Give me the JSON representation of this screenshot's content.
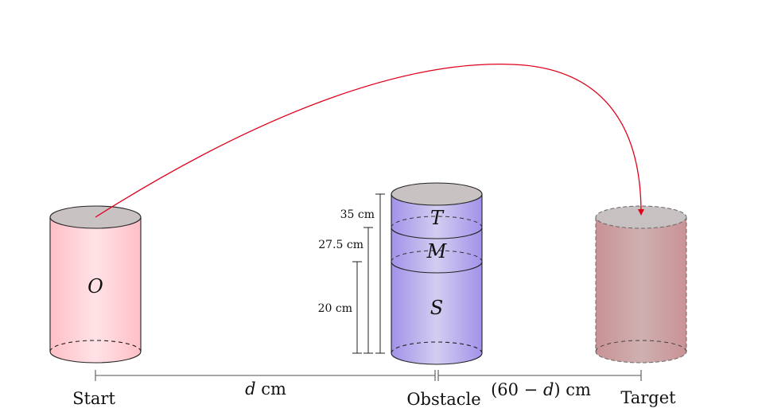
{
  "start_cylinder": {
    "letter": "O",
    "color": "#ffc8cf"
  },
  "obstacle": {
    "letters": {
      "top": "T",
      "middle": "M",
      "bottom": "S"
    },
    "color": "#a99ae8",
    "heights": {
      "total": "35 cm",
      "middle": "27.5 cm",
      "bottom": "20 cm"
    }
  },
  "target_cylinder": {
    "color": "#c99495"
  },
  "ground_labels": {
    "start": "Start",
    "obstacle": "Obstacle",
    "target": "Target",
    "distance_left": "d cm",
    "distance_left_var": "d",
    "distance_left_unit": "cm",
    "distance_right": "(60 − d) cm",
    "distance_right_prefix": "(60 − ",
    "distance_right_var": "d",
    "distance_right_suffix": ") cm"
  },
  "trajectory_color": "#e0001a"
}
